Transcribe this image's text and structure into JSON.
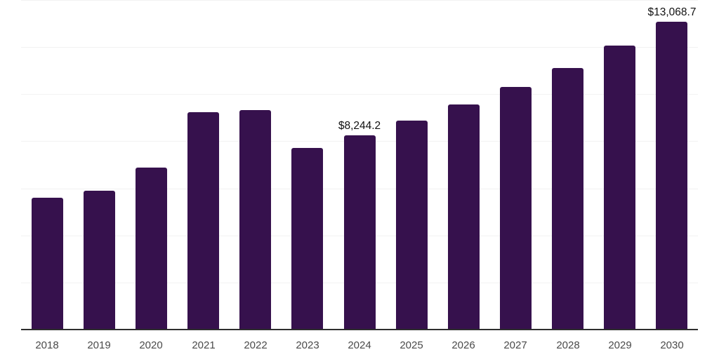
{
  "chart_data": {
    "type": "bar",
    "title": "",
    "xlabel": "",
    "ylabel": "",
    "ylim": [
      0,
      14000
    ],
    "grid": "horizontal",
    "gridline_values": [
      2000,
      4000,
      6000,
      8000,
      10000,
      12000,
      14000
    ],
    "legend": "none",
    "categories": [
      "2018",
      "2019",
      "2020",
      "2021",
      "2022",
      "2023",
      "2024",
      "2025",
      "2026",
      "2027",
      "2028",
      "2029",
      "2030"
    ],
    "values": [
      5600,
      5910,
      6890,
      9220,
      9310,
      7700,
      8244.2,
      8870,
      9550,
      10300,
      11100,
      12060,
      13068.7
    ],
    "data_labels": [
      "",
      "",
      "",
      "",
      "",
      "",
      "$8,244.2",
      "",
      "",
      "",
      "",
      "",
      "$13,068.7"
    ]
  },
  "colors": {
    "bar": "#36114d",
    "axis_line": "#2e2e2e",
    "gridline": "#f2f2f2",
    "tick_label": "#4a4a4a",
    "data_label": "#111111",
    "background": "#ffffff"
  }
}
